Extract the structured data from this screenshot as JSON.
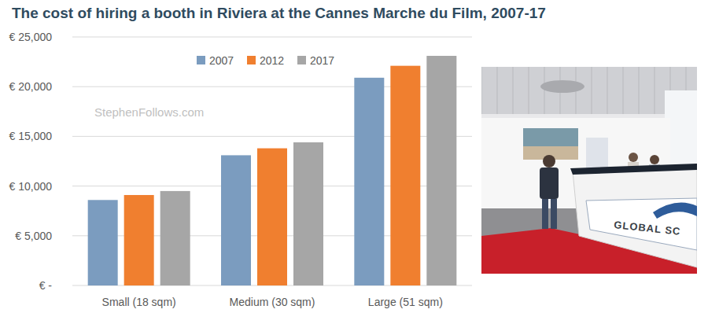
{
  "chart_data": {
    "type": "bar",
    "title": "The cost of hiring a booth in Riviera at the Cannes Marche du Film, 2007-17",
    "annotations": [
      "StephenFollows.com"
    ],
    "categories": [
      "Small (18 sqm)",
      "Medium (30 sqm)",
      "Large (51 sqm)"
    ],
    "series": [
      {
        "name": "2007",
        "color": "#7b9cbf",
        "values": [
          8600,
          13100,
          20900
        ]
      },
      {
        "name": "2012",
        "color": "#f07f2f",
        "values": [
          9100,
          13800,
          22100
        ]
      },
      {
        "name": "2017",
        "color": "#a6a6a6",
        "values": [
          9500,
          14400,
          23100
        ]
      }
    ],
    "ylim": [
      0,
      25000
    ],
    "yticks": [
      {
        "value": 0,
        "label": "€ -"
      },
      {
        "value": 5000,
        "label": "€ 5,000"
      },
      {
        "value": 10000,
        "label": "€ 10,000"
      },
      {
        "value": 15000,
        "label": "€ 15,000"
      },
      {
        "value": 20000,
        "label": "€ 20,000"
      },
      {
        "value": 25000,
        "label": "€ 25,000"
      }
    ],
    "grid": true,
    "legend": "top"
  },
  "photo": {
    "sign": "GLOBAL SC"
  }
}
